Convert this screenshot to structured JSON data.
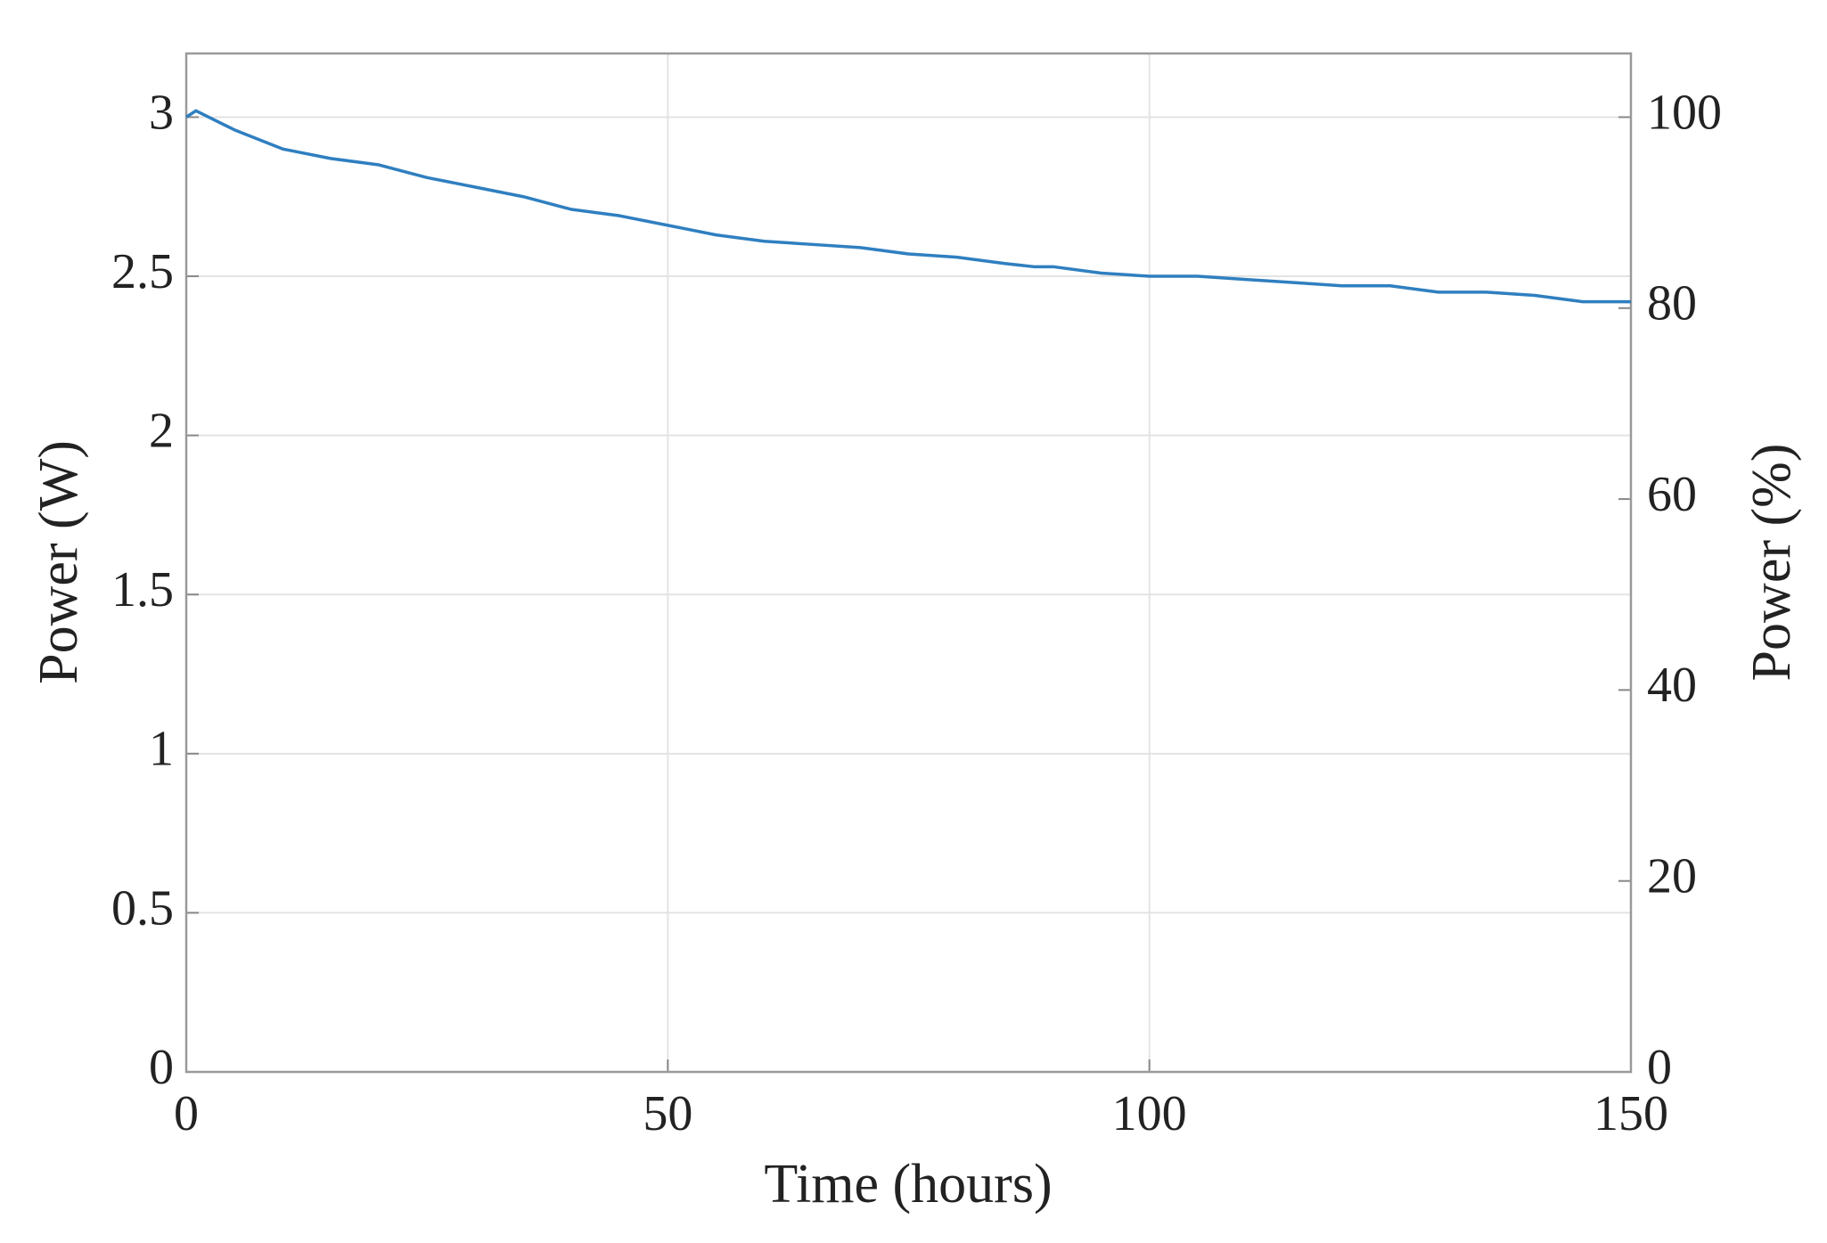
{
  "chart_data": {
    "type": "line",
    "xlabel": "Time (hours)",
    "ylabel": "Power (W)",
    "y2label": "Power (%)",
    "x": [
      0,
      1,
      3,
      5,
      10,
      15,
      20,
      25,
      30,
      35,
      40,
      45,
      50,
      55,
      60,
      65,
      70,
      75,
      80,
      85,
      88,
      90,
      95,
      100,
      105,
      110,
      115,
      120,
      125,
      130,
      135,
      140,
      145,
      150
    ],
    "series": [
      {
        "color": "#2f7fc0",
        "values": [
          3.0,
          3.02,
          2.99,
          2.96,
          2.9,
          2.87,
          2.85,
          2.81,
          2.78,
          2.75,
          2.71,
          2.69,
          2.66,
          2.63,
          2.61,
          2.6,
          2.59,
          2.57,
          2.56,
          2.54,
          2.53,
          2.53,
          2.51,
          2.5,
          2.5,
          2.49,
          2.48,
          2.47,
          2.47,
          2.45,
          2.45,
          2.44,
          2.42,
          2.42
        ]
      }
    ],
    "xlim": [
      0,
      150
    ],
    "xticks": [
      0,
      50,
      100,
      150
    ],
    "ylim": [
      0,
      3.2
    ],
    "yticks": [
      0,
      0.5,
      1,
      1.5,
      2,
      2.5,
      3
    ],
    "y2lim": [
      0,
      106.67
    ],
    "y2ticks": [
      0,
      20,
      40,
      60,
      80,
      100
    ],
    "grid": true
  }
}
